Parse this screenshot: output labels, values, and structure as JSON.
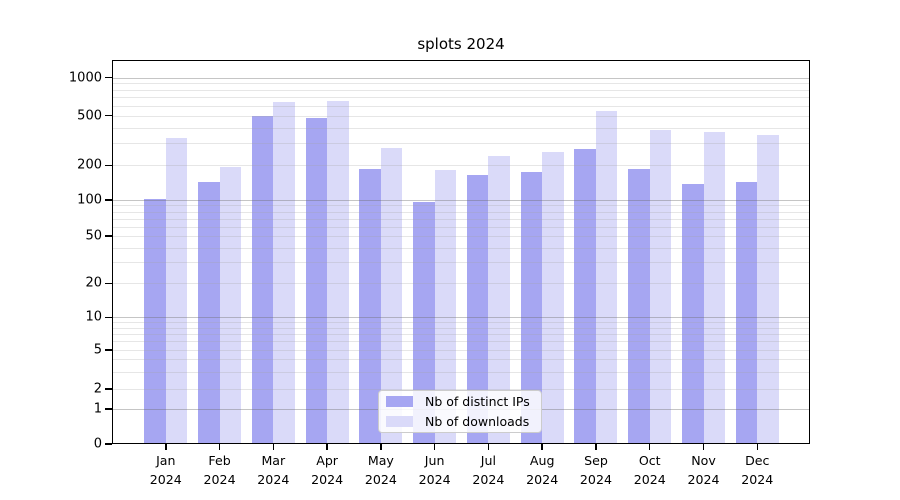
{
  "chart_data": {
    "type": "bar",
    "title": "splots 2024",
    "categories": [
      "Jan",
      "Feb",
      "Mar",
      "Apr",
      "May",
      "Jun",
      "Jul",
      "Aug",
      "Sep",
      "Oct",
      "Nov",
      "Dec"
    ],
    "year": "2024",
    "series": [
      {
        "name": "Nb of distinct IPs",
        "color": "#a6a6f2",
        "values": [
          103,
          142,
          500,
          480,
          185,
          96,
          164,
          176,
          272,
          187,
          137,
          142
        ]
      },
      {
        "name": "Nb of downloads",
        "color": "#dadaf9",
        "values": [
          330,
          195,
          640,
          655,
          275,
          182,
          237,
          257,
          540,
          385,
          370,
          352
        ]
      }
    ],
    "xlabel": "",
    "ylabel": "",
    "yticks": [
      0,
      1,
      2,
      5,
      10,
      20,
      50,
      100,
      200,
      500,
      1000
    ],
    "ylim": [
      0,
      1400
    ],
    "scale": "quasi-log",
    "grid": true,
    "legend_position": "lower center"
  }
}
